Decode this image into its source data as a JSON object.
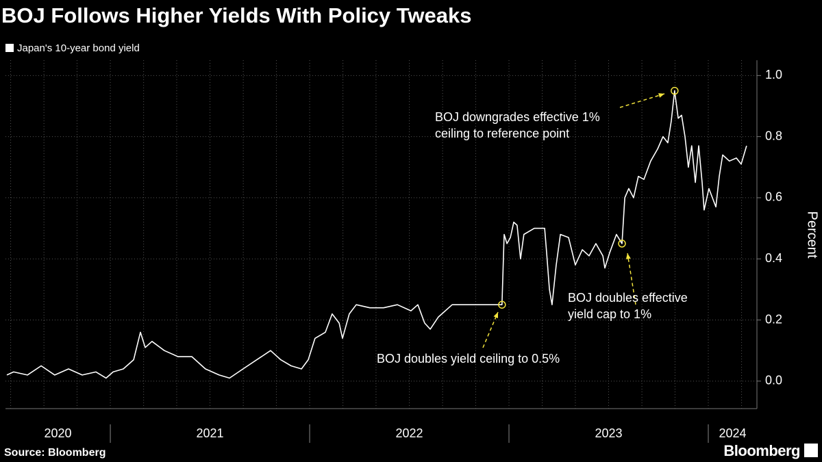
{
  "chart_data": {
    "type": "line",
    "title": "BOJ Follows Higher Yields With Policy Tweaks",
    "y_label": "Percent",
    "source": "Source: Bloomberg",
    "brand": "Bloomberg",
    "series": [
      {
        "name": "Japan's 10-year bond yield",
        "color": "#ffffff",
        "x": [
          2020.481,
          2020.515,
          2020.584,
          2020.653,
          2020.721,
          2020.79,
          2020.859,
          2020.928,
          2020.979,
          2021.014,
          2021.065,
          2021.117,
          2021.151,
          2021.175,
          2021.209,
          2021.271,
          2021.34,
          2021.409,
          2021.477,
          2021.546,
          2021.598,
          2021.666,
          2021.735,
          2021.804,
          2021.855,
          2021.907,
          2021.959,
          2021.993,
          2022.027,
          2022.079,
          2022.113,
          2022.148,
          2022.165,
          2022.199,
          2022.234,
          2022.302,
          2022.371,
          2022.44,
          2022.508,
          2022.543,
          2022.577,
          2022.605,
          2022.646,
          2022.715,
          2022.783,
          2022.852,
          2022.921,
          2022.965,
          2022.976,
          2022.99,
          2023.007,
          2023.024,
          2023.041,
          2023.058,
          2023.075,
          2023.127,
          2023.179,
          2023.189,
          2023.203,
          2023.216,
          2023.237,
          2023.258,
          2023.299,
          2023.333,
          2023.368,
          2023.402,
          2023.436,
          2023.471,
          2023.481,
          2023.505,
          2023.539,
          2023.567,
          2023.581,
          2023.601,
          2023.625,
          2023.649,
          2023.677,
          2023.711,
          2023.746,
          2023.773,
          2023.797,
          2023.814,
          2023.831,
          2023.849,
          2023.866,
          2023.883,
          2023.9,
          2023.917,
          2023.935,
          2023.952,
          2023.969,
          2023.979,
          2024.003,
          2024.038,
          2024.055,
          2024.072,
          2024.106,
          2024.141,
          2024.165,
          2024.192
        ],
        "values": [
          0.02,
          0.03,
          0.02,
          0.05,
          0.02,
          0.04,
          0.02,
          0.03,
          0.01,
          0.03,
          0.04,
          0.07,
          0.16,
          0.11,
          0.13,
          0.1,
          0.08,
          0.08,
          0.04,
          0.02,
          0.01,
          0.04,
          0.07,
          0.1,
          0.07,
          0.05,
          0.04,
          0.07,
          0.14,
          0.16,
          0.22,
          0.19,
          0.14,
          0.22,
          0.25,
          0.24,
          0.24,
          0.25,
          0.23,
          0.25,
          0.19,
          0.17,
          0.21,
          0.25,
          0.25,
          0.25,
          0.25,
          0.25,
          0.48,
          0.45,
          0.47,
          0.52,
          0.51,
          0.4,
          0.48,
          0.5,
          0.5,
          0.42,
          0.3,
          0.25,
          0.38,
          0.48,
          0.47,
          0.38,
          0.43,
          0.41,
          0.45,
          0.41,
          0.37,
          0.42,
          0.48,
          0.45,
          0.6,
          0.63,
          0.6,
          0.67,
          0.66,
          0.72,
          0.76,
          0.8,
          0.78,
          0.85,
          0.95,
          0.86,
          0.87,
          0.8,
          0.7,
          0.77,
          0.65,
          0.77,
          0.65,
          0.56,
          0.63,
          0.57,
          0.67,
          0.74,
          0.72,
          0.73,
          0.71,
          0.77
        ]
      }
    ],
    "annotations": [
      {
        "text": [
          "BOJ doubles yield ceiling to 0.5%"
        ]
      },
      {
        "text": [
          "BOJ doubles effective",
          "yield cap to 1%"
        ]
      },
      {
        "text": [
          "BOJ downgrades effective 1%",
          "ceiling to reference point"
        ]
      }
    ],
    "xlim": [
      2020.474,
      2024.244
    ],
    "ylim": [
      -0.09,
      1.05
    ],
    "yticks": [
      {
        "value": 0,
        "label": "0.0"
      },
      0.2,
      0.4,
      0.6,
      0.8,
      {
        "value": 1,
        "label": "1.0"
      }
    ],
    "year_labels": [
      "2020",
      "2021",
      "2022",
      "2023",
      "2024"
    ],
    "year_boundaries": [
      2021,
      2022,
      2023,
      2024
    ],
    "xgrid": [
      2020.5,
      2020.667,
      2020.833,
      2021,
      2021.167,
      2021.333,
      2021.5,
      2021.667,
      2021.833,
      2022,
      2022.167,
      2022.333,
      2022.5,
      2022.667,
      2022.833,
      2023,
      2023.167,
      2023.333,
      2023.5,
      2023.667,
      2023.833,
      2024,
      2024.167
    ],
    "grid": true,
    "annotation_color": "#f2e33c"
  }
}
